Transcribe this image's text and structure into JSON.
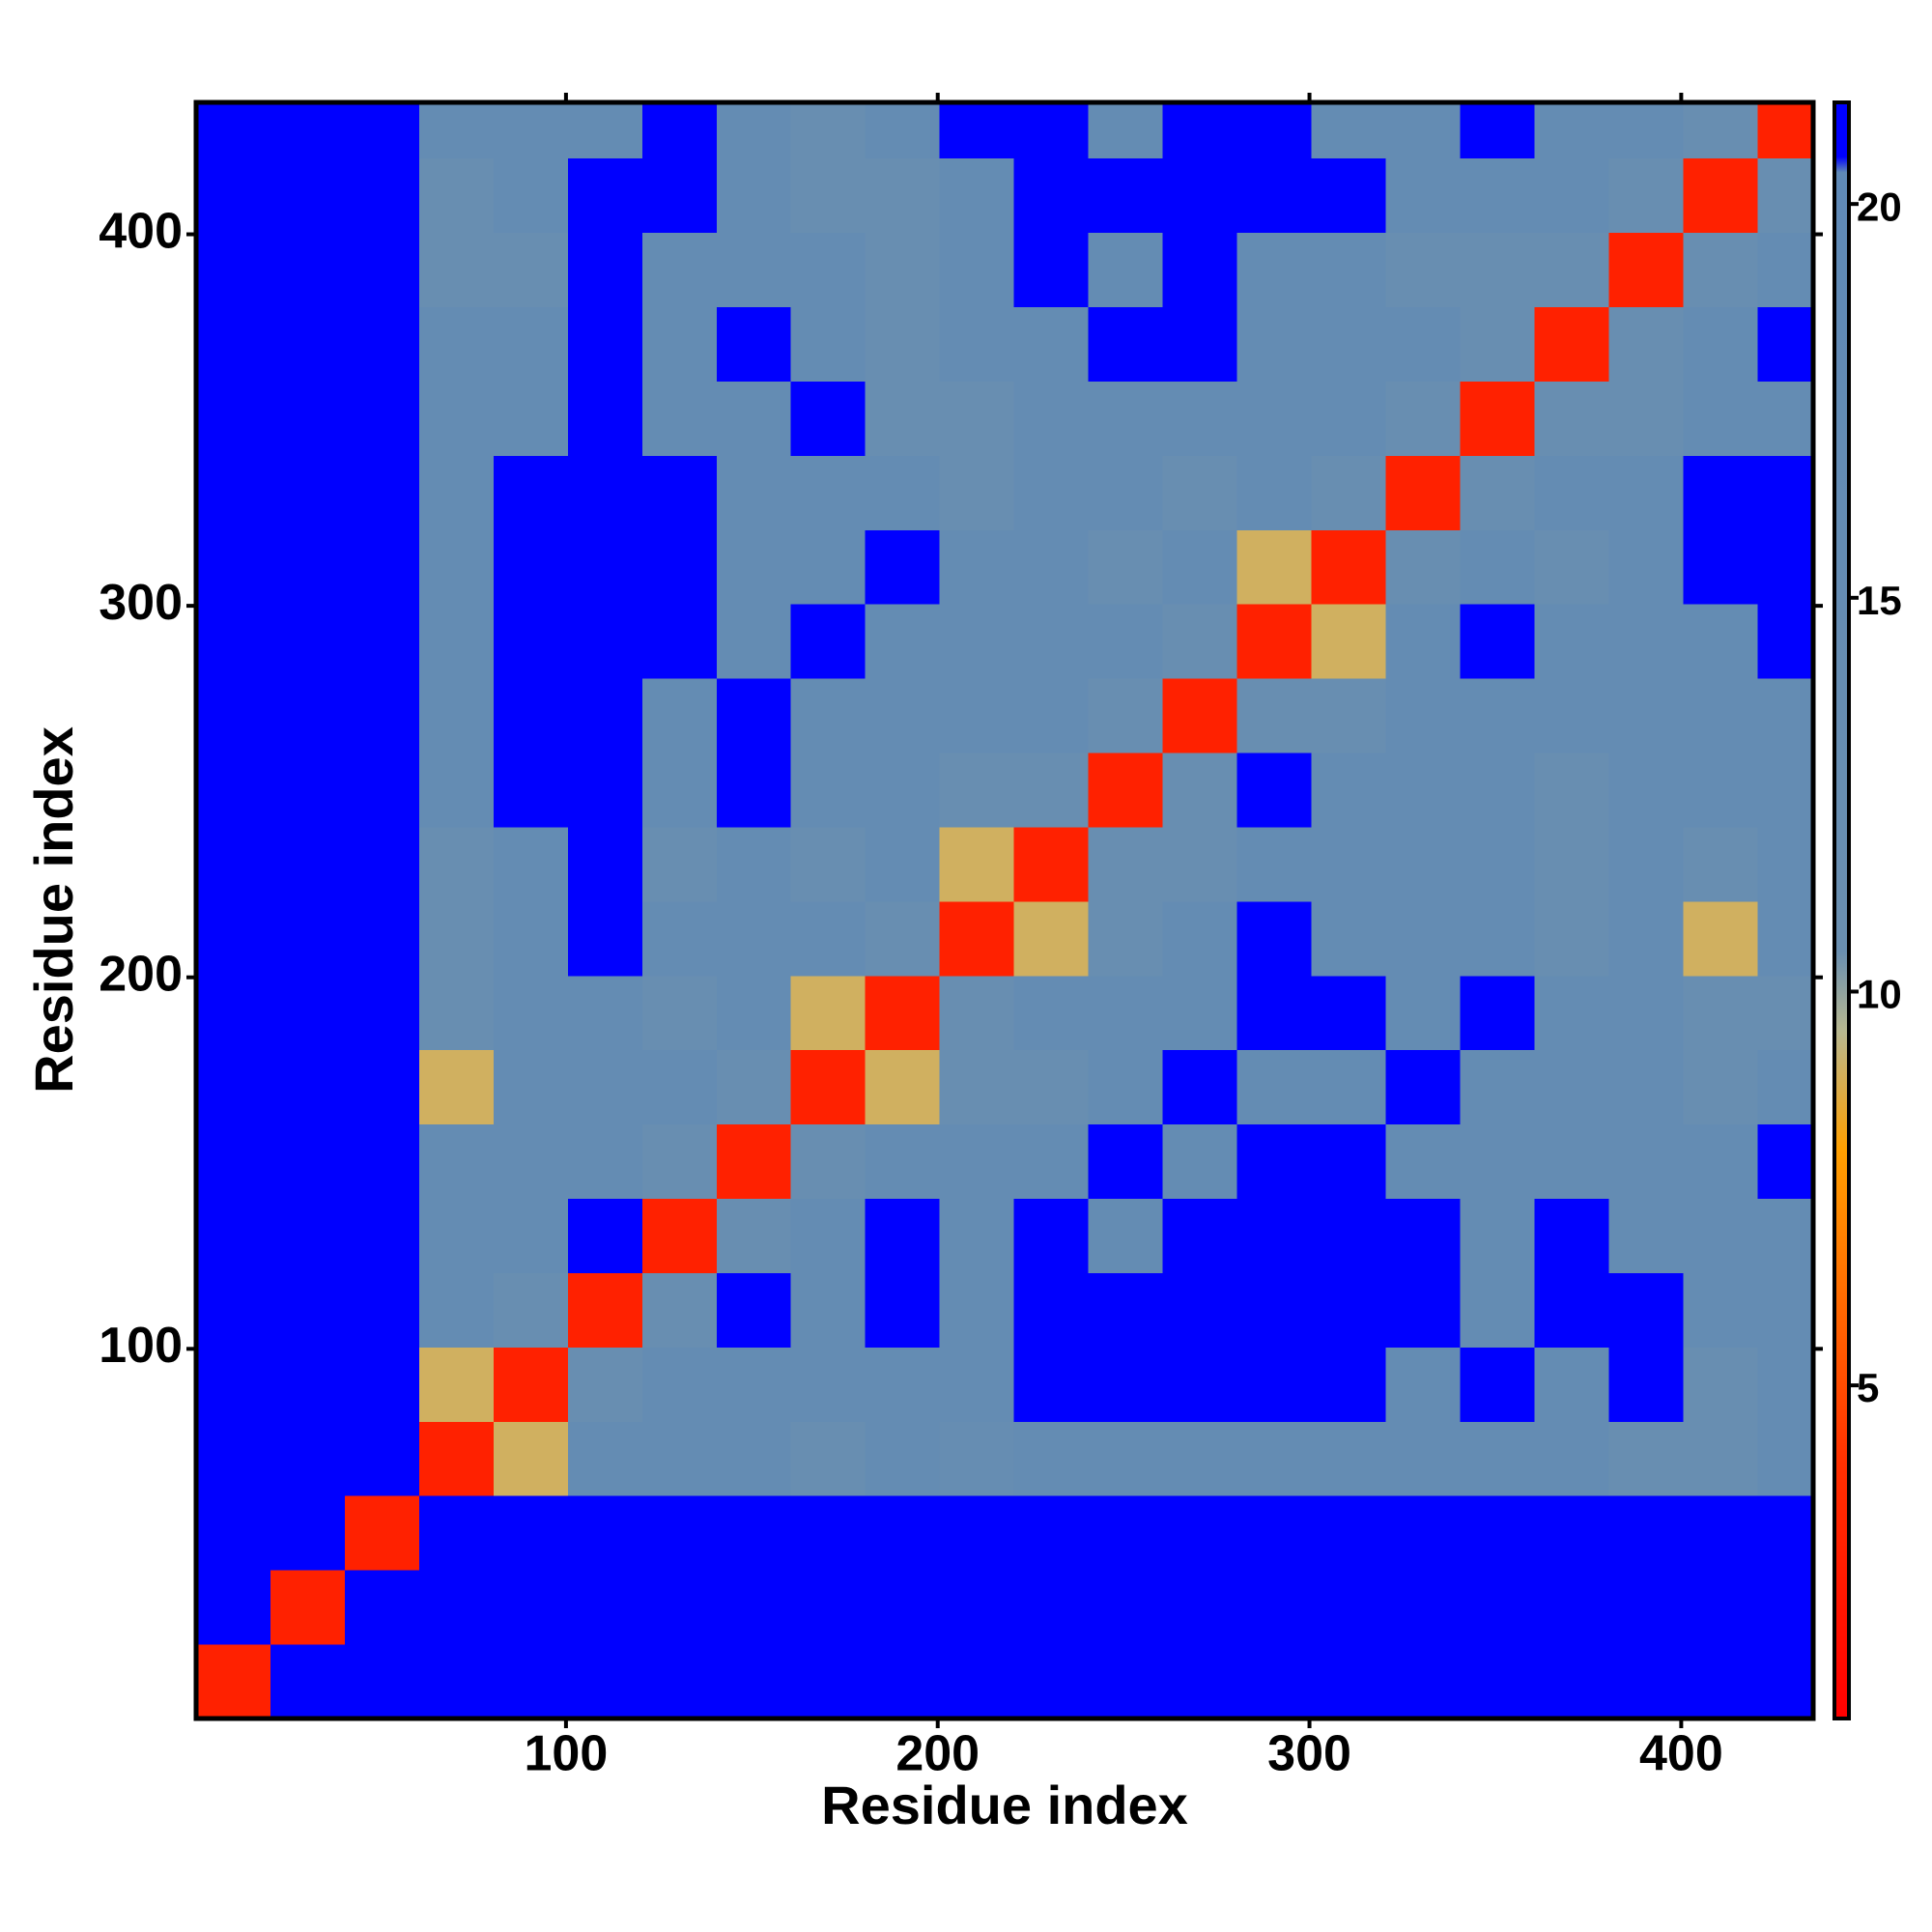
{
  "chart_data": {
    "type": "heatmap",
    "x_label": "Residue index",
    "y_label": "Residue index",
    "xlim": [
      0.5,
      435.5
    ],
    "ylim": [
      0.5,
      435.5
    ],
    "xticks": [
      100,
      200,
      300,
      400
    ],
    "yticks": [
      100,
      200,
      300,
      400
    ],
    "xbins": [
      0.5,
      20.5,
      40.5,
      60.5,
      80.5,
      100.5,
      120.5,
      140.5,
      160.5,
      180.5,
      200.5,
      220.5,
      240.5,
      260.5,
      280.5,
      300.5,
      320.5,
      340.5,
      360.5,
      380.5,
      400.5,
      420.5,
      435.5
    ],
    "ybins": [
      0.5,
      20.5,
      40.5,
      60.5,
      80.5,
      100.5,
      120.5,
      140.5,
      160.5,
      180.5,
      200.5,
      220.5,
      240.5,
      260.5,
      280.5,
      300.5,
      320.5,
      340.5,
      360.5,
      380.5,
      400.5,
      420.5,
      435.5
    ],
    "values": [
      [
        3,
        21,
        21,
        21,
        21,
        21,
        21,
        21,
        21,
        21,
        21,
        21,
        21,
        21,
        21,
        21,
        21,
        21,
        21,
        21,
        21,
        21
      ],
      [
        21,
        3,
        21,
        21,
        21,
        21,
        21,
        21,
        21,
        21,
        21,
        21,
        21,
        21,
        21,
        21,
        21,
        21,
        21,
        21,
        21,
        21
      ],
      [
        21,
        21,
        3,
        21,
        21,
        21,
        21,
        21,
        21,
        21,
        21,
        21,
        21,
        21,
        21,
        21,
        21,
        21,
        21,
        21,
        21,
        21
      ],
      [
        21,
        21,
        21,
        3,
        9,
        16,
        16,
        16,
        12,
        16,
        14,
        16,
        16,
        16,
        16,
        16,
        16,
        16,
        16,
        12,
        12,
        16
      ],
      [
        21,
        21,
        21,
        9,
        3,
        12,
        16,
        16,
        16,
        16,
        16,
        21,
        21,
        21,
        21,
        21,
        16,
        21,
        16,
        21,
        12,
        16
      ],
      [
        21,
        21,
        21,
        16,
        12,
        3,
        12,
        21,
        16,
        21,
        16,
        21,
        21,
        21,
        21,
        21,
        21,
        16,
        21,
        21,
        16,
        16
      ],
      [
        21,
        21,
        21,
        16,
        16,
        21,
        3,
        12,
        16,
        21,
        16,
        21,
        16,
        21,
        21,
        21,
        21,
        16,
        21,
        16,
        16,
        16
      ],
      [
        21,
        21,
        21,
        16,
        16,
        16,
        12,
        3,
        12,
        16,
        16,
        16,
        21,
        16,
        21,
        21,
        16,
        16,
        16,
        16,
        16,
        21
      ],
      [
        21,
        21,
        21,
        9,
        16,
        16,
        16,
        12,
        3,
        9,
        12,
        12,
        16,
        21,
        16,
        16,
        21,
        16,
        16,
        16,
        12,
        16
      ],
      [
        21,
        21,
        21,
        12,
        16,
        16,
        12,
        16,
        9,
        3,
        12,
        16,
        16,
        16,
        21,
        21,
        16,
        21,
        16,
        16,
        12,
        12
      ],
      [
        21,
        21,
        21,
        12,
        16,
        21,
        16,
        16,
        16,
        12,
        3,
        9,
        12,
        16,
        21,
        16,
        16,
        16,
        12,
        16,
        9,
        16
      ],
      [
        21,
        21,
        21,
        12,
        16,
        21,
        12,
        16,
        12,
        16,
        9,
        3,
        12,
        12,
        16,
        16,
        16,
        16,
        12,
        16,
        12,
        16
      ],
      [
        21,
        21,
        21,
        16,
        21,
        21,
        16,
        21,
        16,
        16,
        12,
        12,
        3,
        12,
        21,
        16,
        16,
        16,
        12,
        16,
        16,
        16
      ],
      [
        21,
        21,
        21,
        16,
        21,
        21,
        16,
        21,
        16,
        16,
        16,
        16,
        12,
        3,
        12,
        12,
        16,
        16,
        16,
        16,
        16,
        16
      ],
      [
        21,
        21,
        21,
        16,
        21,
        21,
        21,
        16,
        21,
        16,
        16,
        16,
        16,
        12,
        3,
        9,
        16,
        21,
        16,
        16,
        16,
        21
      ],
      [
        21,
        21,
        21,
        16,
        21,
        21,
        21,
        16,
        16,
        21,
        16,
        16,
        12,
        16,
        9,
        3,
        12,
        16,
        12,
        16,
        21,
        21
      ],
      [
        21,
        21,
        21,
        16,
        21,
        21,
        21,
        16,
        16,
        16,
        12,
        16,
        16,
        12,
        16,
        12,
        3,
        12,
        16,
        16,
        21,
        21
      ],
      [
        21,
        21,
        21,
        16,
        16,
        21,
        16,
        16,
        21,
        12,
        12,
        16,
        16,
        16,
        16,
        16,
        12,
        3,
        12,
        12,
        16,
        16
      ],
      [
        21,
        21,
        21,
        16,
        16,
        21,
        16,
        21,
        16,
        12,
        16,
        16,
        21,
        21,
        16,
        16,
        16,
        12,
        3,
        12,
        16,
        21
      ],
      [
        21,
        21,
        21,
        12,
        12,
        21,
        16,
        16,
        16,
        12,
        16,
        21,
        16,
        21,
        16,
        16,
        12,
        12,
        12,
        3,
        12,
        16
      ],
      [
        21,
        21,
        21,
        12,
        16,
        21,
        21,
        16,
        12,
        12,
        16,
        21,
        21,
        21,
        21,
        21,
        16,
        16,
        16,
        12,
        3,
        12
      ],
      [
        21,
        21,
        21,
        16,
        16,
        16,
        21,
        16,
        12,
        16,
        21,
        21,
        16,
        21,
        21,
        16,
        16,
        21,
        16,
        16,
        12,
        3
      ]
    ],
    "colorbar": {
      "lim": [
        0.77,
        21.29
      ],
      "ticks": [
        5,
        10,
        15,
        20
      ],
      "scale": [
        [
          0.77,
          "#ff0000"
        ],
        [
          4,
          "#ff3000"
        ],
        [
          8,
          "#ffa000"
        ],
        [
          9.5,
          "#b8b890"
        ],
        [
          10.5,
          "#6a8fb0"
        ],
        [
          20.4,
          "#5f89b6"
        ],
        [
          20.6,
          "#0000ff"
        ],
        [
          21.29,
          "#0000ff"
        ]
      ]
    }
  }
}
